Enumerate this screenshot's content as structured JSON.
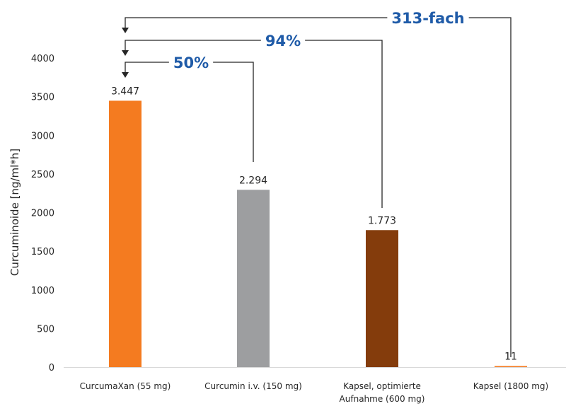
{
  "chart_data": {
    "type": "bar",
    "ylabel": "Curcuminoide [ng/ml*h]",
    "xlabel": "",
    "title": "",
    "ylim": [
      0,
      4000
    ],
    "yticks": [
      0,
      500,
      1000,
      1500,
      2000,
      2500,
      3000,
      3500,
      4000
    ],
    "grid": false,
    "categories": [
      [
        "CurcumaXan (55 mg)"
      ],
      [
        "Curcumin i.v. (150 mg)"
      ],
      [
        "Kapsel, optimierte",
        "Aufnahme (600 mg)"
      ],
      [
        "Kapsel (1800 mg)"
      ]
    ],
    "values": [
      3447,
      2294,
      1773,
      11
    ],
    "value_labels": [
      "3.447",
      "2.294",
      "1.773",
      "11"
    ],
    "bar_colors": [
      "#F47B20",
      "#9D9E A0",
      "#843C0C",
      "#F47B20"
    ],
    "annotations": [
      {
        "text": "50%",
        "from_bar": 1,
        "to_bar": 0
      },
      {
        "text": "94%",
        "from_bar": 2,
        "to_bar": 0
      },
      {
        "text": "313-fach",
        "from_bar": 3,
        "to_bar": 0
      }
    ],
    "annotation_color": "#1F5BA8",
    "connector_color": "#262626"
  }
}
